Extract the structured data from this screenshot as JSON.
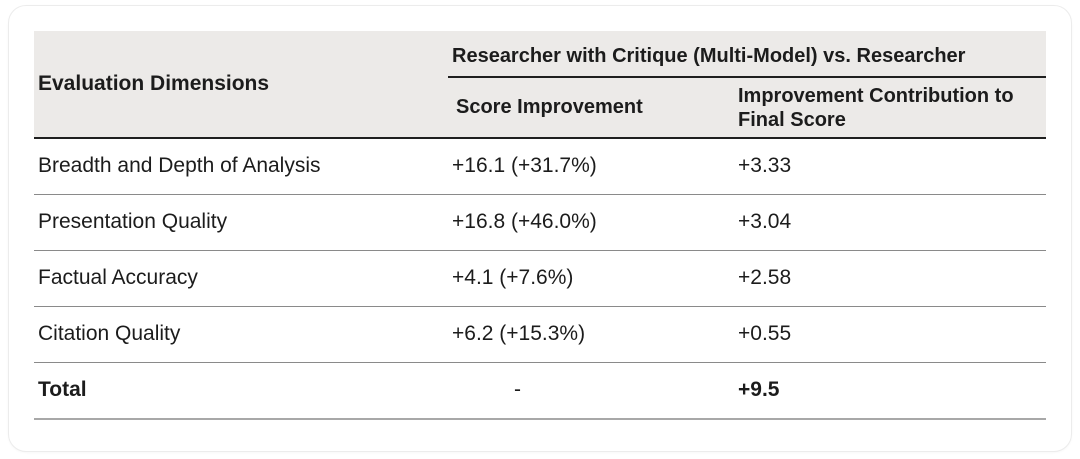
{
  "chart_data": {
    "type": "table",
    "title": "Researcher with Critique (Multi-Model) vs. Researcher",
    "columns": [
      "Evaluation Dimensions",
      "Score Improvement",
      "Improvement Contribution to Final Score"
    ],
    "rows": [
      [
        "Breadth and Depth of Analysis",
        "+16.1 (+31.7%)",
        "+3.33"
      ],
      [
        "Presentation Quality",
        "+16.8 (+46.0%)",
        "+3.04"
      ],
      [
        "Factual Accuracy",
        "+4.1 (+7.6%)",
        "+2.58"
      ],
      [
        "Citation Quality",
        "+6.2 (+15.3%)",
        "+0.55"
      ],
      [
        "Total",
        "-",
        "+9.5"
      ]
    ]
  },
  "table": {
    "col1_header": "Evaluation Dimensions",
    "spanner_header": "Researcher with Critique (Multi-Model) vs. Researcher",
    "sub_header_col2": "Score Improvement",
    "sub_header_col3": "Improvement Contribution to Final Score",
    "rows": [
      {
        "dimension": "Breadth and Depth of Analysis",
        "score_improvement": "+16.1 (+31.7%)",
        "contribution": "+3.33"
      },
      {
        "dimension": "Presentation Quality",
        "score_improvement": "+16.8 (+46.0%)",
        "contribution": "+3.04"
      },
      {
        "dimension": "Factual Accuracy",
        "score_improvement": "+4.1 (+7.6%)",
        "contribution": "+2.58"
      },
      {
        "dimension": "Citation Quality",
        "score_improvement": "+6.2 (+15.3%)",
        "contribution": "+0.55"
      }
    ],
    "total_row": {
      "dimension": "Total",
      "score_improvement": "-",
      "contribution": "+9.5"
    },
    "colors": {
      "header_bg": "#ECEAE8",
      "text": "#1c1c1c",
      "strong_rule": "#1f1f1f",
      "row_rule": "#8a8a8a",
      "bottom_rule": "#a8a8a8",
      "card_border": "#ececec"
    }
  }
}
